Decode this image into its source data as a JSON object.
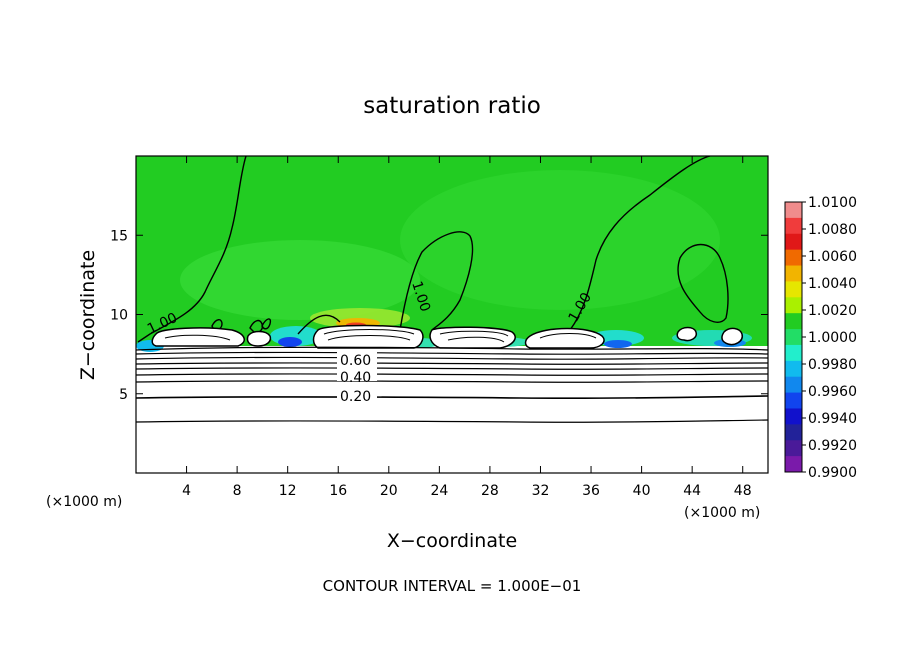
{
  "chart_data": {
    "type": "heatmap",
    "title": "saturation ratio",
    "xlabel": "X−coordinate",
    "ylabel": "Z−coordinate",
    "x_unit_left": "(×1000 m)",
    "x_unit_right": "(×1000 m)",
    "xlim": [
      0,
      50
    ],
    "ylim": [
      0,
      20
    ],
    "x_ticks": [
      4,
      8,
      12,
      16,
      20,
      24,
      28,
      32,
      36,
      40,
      44,
      48
    ],
    "y_ticks": [
      5,
      10,
      15
    ],
    "footer": "CONTOUR INTERVAL = 1.000E−01",
    "colorbar": {
      "min": 0.99,
      "max": 1.01,
      "labels": [
        "1.0100",
        "1.0080",
        "1.0060",
        "1.0040",
        "1.0020",
        "1.0000",
        "0.9980",
        "0.9960",
        "0.9940",
        "0.9920",
        "0.9900"
      ],
      "colors": [
        "#f08c8c",
        "#f03c3c",
        "#e01818",
        "#f06a00",
        "#f2b400",
        "#e6e600",
        "#aaf000",
        "#22cc22",
        "#22dd66",
        "#22eecc",
        "#11bbee",
        "#1188ee",
        "#1144ee",
        "#1111cc",
        "#222299",
        "#4a1a99",
        "#7a1aaa"
      ]
    },
    "background_value": 1.0,
    "contour_labels": [
      {
        "text": "1.00"
      },
      {
        "text": "1.00"
      },
      {
        "text": "1.00"
      },
      {
        "text": "0.60"
      },
      {
        "text": "0.40"
      },
      {
        "text": "0.20"
      }
    ]
  }
}
